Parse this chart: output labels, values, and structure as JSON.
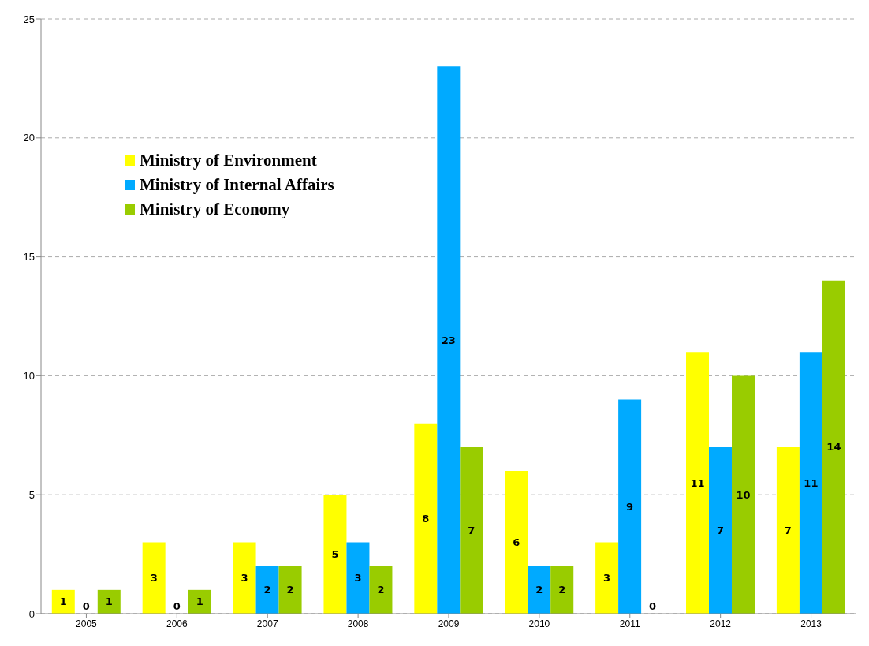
{
  "chart_data": {
    "type": "bar",
    "categories": [
      "2005",
      "2006",
      "2007",
      "2008",
      "2009",
      "2010",
      "2011",
      "2012",
      "2013"
    ],
    "series": [
      {
        "name": "Ministry of Environment",
        "color": "#ffff00",
        "values": [
          1,
          3,
          3,
          5,
          8,
          6,
          3,
          11,
          7
        ]
      },
      {
        "name": "Ministry of Internal Affairs",
        "color": "#00aaff",
        "values": [
          0,
          0,
          2,
          3,
          23,
          2,
          9,
          7,
          11
        ]
      },
      {
        "name": "Ministry of Economy",
        "color": "#99cc00",
        "values": [
          1,
          1,
          2,
          2,
          7,
          2,
          0,
          10,
          14
        ]
      }
    ],
    "ylim": [
      0,
      25
    ],
    "yticks": [
      0,
      5,
      10,
      15,
      20,
      25
    ],
    "grid": "y",
    "legend": "top left",
    "data_labels": true
  }
}
